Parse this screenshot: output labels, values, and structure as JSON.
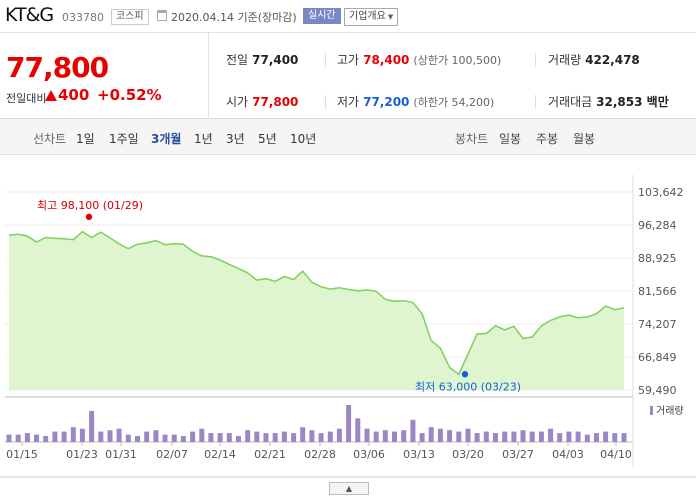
{
  "header": {
    "stock_name": "KT&G",
    "stock_code": "033780",
    "market": "코스피",
    "date_text": "2020.04.14 기준(장마감)",
    "realtime_label": "실시간",
    "info_label": "기업개요"
  },
  "price": {
    "current": "77,800",
    "change_label": "전일대비",
    "change_value": "400",
    "change_pct": "+0.52%",
    "prev_close_label": "전일",
    "prev_close": "77,400",
    "high_label": "고가",
    "high": "78,400",
    "upper_limit": "(상한가 100,500)",
    "volume_label": "거래량",
    "volume": "422,478",
    "open_label": "시가",
    "open": "77,800",
    "low_label": "저가",
    "low": "77,200",
    "lower_limit": "(하한가 54,200)",
    "amount_label": "거래대금",
    "amount": "32,853 백만"
  },
  "periods": {
    "line_chart_label": "선차트",
    "items": [
      "1일",
      "1주일",
      "3개월",
      "1년",
      "3년",
      "5년",
      "10년"
    ],
    "active": "3개월",
    "candle_chart_label": "봉차트",
    "candle_items": [
      "일봉",
      "주봉",
      "월봉"
    ]
  },
  "chart_data": {
    "type": "area",
    "y_ticks": [
      "103,642",
      "96,284",
      "88,925",
      "81,566",
      "74,207",
      "66,849",
      "59,490"
    ],
    "ylim": [
      59490,
      103642
    ],
    "x_ticks": [
      "01/15",
      "01/23",
      "01/31",
      "02/07",
      "02/14",
      "02/21",
      "02/28",
      "03/06",
      "03/13",
      "03/20",
      "03/27",
      "04/03",
      "04/10"
    ],
    "values": [
      94000,
      94200,
      93800,
      92500,
      93500,
      93300,
      93200,
      93000,
      94800,
      93500,
      94700,
      93400,
      92100,
      91000,
      92000,
      92300,
      92800,
      91900,
      92100,
      92000,
      90400,
      89400,
      89200,
      88500,
      87500,
      86600,
      85600,
      84000,
      84300,
      83700,
      84800,
      84100,
      86000,
      83500,
      82500,
      82000,
      82300,
      81900,
      81600,
      81800,
      81500,
      79700,
      79300,
      79400,
      79000,
      76500,
      70500,
      68800,
      64500,
      63000,
      67500,
      72000,
      72100,
      73800,
      72900,
      73700,
      71000,
      71300,
      73800,
      75000,
      75800,
      76200,
      75600,
      75800,
      76500,
      78200,
      77400,
      77800
    ],
    "volumes": [
      2.5,
      2.5,
      3.0,
      2.5,
      2.0,
      3.5,
      3.5,
      5.0,
      4.5,
      10.5,
      3.5,
      4.0,
      4.5,
      2.5,
      2.0,
      3.5,
      4.0,
      2.5,
      2.5,
      2.0,
      3.5,
      4.5,
      3.0,
      3.0,
      3.0,
      2.0,
      4.0,
      3.5,
      3.0,
      3.0,
      3.5,
      3.0,
      5.0,
      4.0,
      3.0,
      3.5,
      4.5,
      12.5,
      8.0,
      4.5,
      3.5,
      4.0,
      3.5,
      4.0,
      7.5,
      3.0,
      5.0,
      4.5,
      4.0,
      3.5,
      4.5,
      3.0,
      3.5,
      3.0,
      3.5,
      3.5,
      4.0,
      3.5,
      3.5,
      4.5,
      3.0,
      3.5,
      3.5,
      2.5,
      3.0,
      3.5,
      3.0,
      3.0
    ],
    "high_annotation": "최고 98,100 (01/29)",
    "high_value": 98100,
    "low_annotation": "최저 63,000 (03/23)",
    "low_value": 63000,
    "volume_legend": "거래량",
    "line_color": "#7fd05a",
    "fill_color": "#dff5cf",
    "volume_color": "#9b87c7",
    "grid": true
  }
}
